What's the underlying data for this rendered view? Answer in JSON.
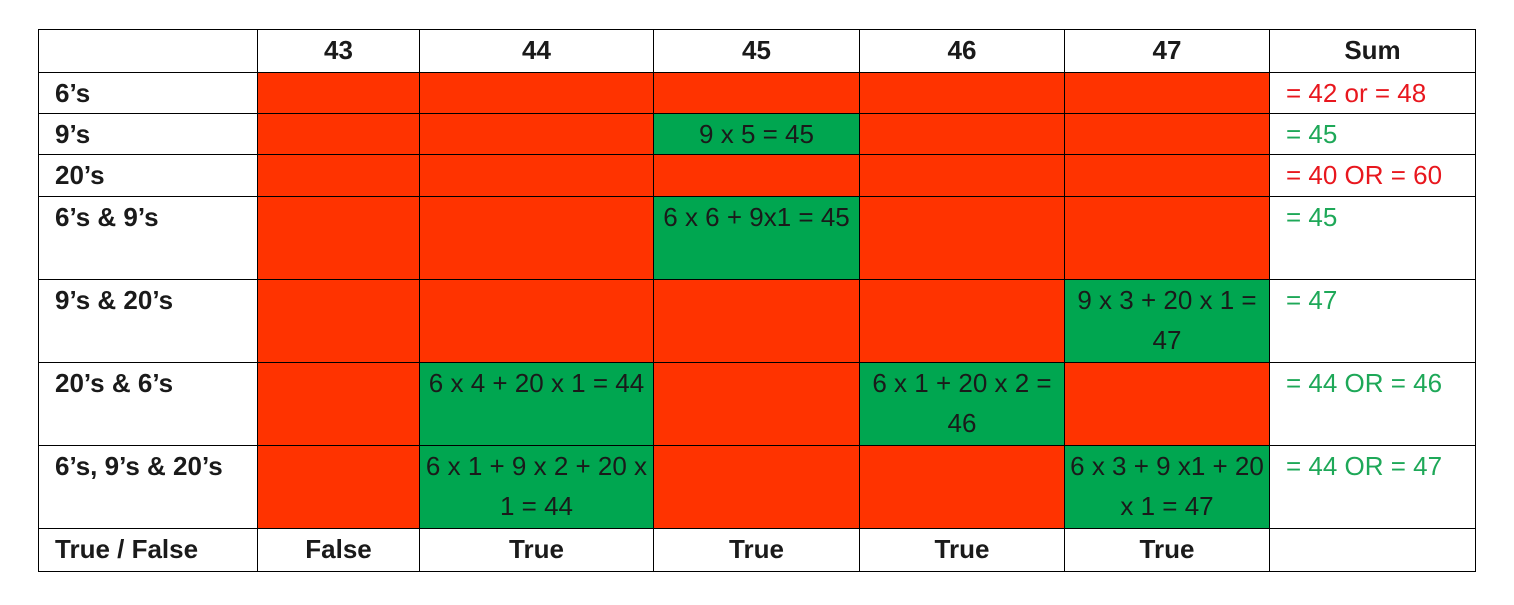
{
  "header": {
    "corner": "",
    "columns": [
      "43",
      "44",
      "45",
      "46",
      "47"
    ],
    "sum": "Sum"
  },
  "rows": [
    {
      "label": "6’s",
      "cells": [
        "",
        "",
        "",
        "",
        ""
      ],
      "status": [
        "red",
        "red",
        "red",
        "red",
        "red"
      ],
      "sum": "= 42 or = 48",
      "sum_status": "red"
    },
    {
      "label": "9’s",
      "cells": [
        "",
        "",
        "9 x 5 = 45",
        "",
        ""
      ],
      "status": [
        "red",
        "red",
        "green",
        "red",
        "red"
      ],
      "sum": "= 45",
      "sum_status": "green"
    },
    {
      "label": "20’s",
      "cells": [
        "",
        "",
        "",
        "",
        ""
      ],
      "status": [
        "red",
        "red",
        "red",
        "red",
        "red"
      ],
      "sum": "= 40 OR = 60",
      "sum_status": "red"
    },
    {
      "label": "6’s & 9’s",
      "cells": [
        "",
        "",
        "6 x 6 + 9x1 = 45",
        "",
        ""
      ],
      "status": [
        "red",
        "red",
        "green",
        "red",
        "red"
      ],
      "sum": "= 45",
      "sum_status": "green"
    },
    {
      "label": "9’s & 20’s",
      "cells": [
        "",
        "",
        "",
        "",
        "9 x 3 + 20 x 1 = 47"
      ],
      "status": [
        "red",
        "red",
        "red",
        "red",
        "green"
      ],
      "sum": "= 47",
      "sum_status": "green"
    },
    {
      "label": "20’s & 6’s",
      "cells": [
        "",
        "6 x 4 + 20 x 1 = 44",
        "",
        "6 x 1 + 20 x 2 = 46",
        ""
      ],
      "status": [
        "red",
        "green",
        "red",
        "green",
        "red"
      ],
      "sum": "= 44 OR = 46",
      "sum_status": "green"
    },
    {
      "label": "6’s, 9’s & 20’s",
      "cells": [
        "",
        "6 x 1 + 9 x 2 + 20 x 1 = 44",
        "",
        "",
        "6 x 3 + 9 x1 + 20 x 1 = 47"
      ],
      "status": [
        "red",
        "green",
        "red",
        "red",
        "green"
      ],
      "sum": "= 44 OR = 47",
      "sum_status": "green"
    }
  ],
  "footer": {
    "label": "True / False",
    "values": [
      "False",
      "True",
      "True",
      "True",
      "True"
    ],
    "sum": ""
  },
  "colors": {
    "fail_fill": "#ff3300",
    "pass_fill": "#00a650",
    "fail_text": "#e8171e",
    "pass_text": "#1ea858"
  }
}
